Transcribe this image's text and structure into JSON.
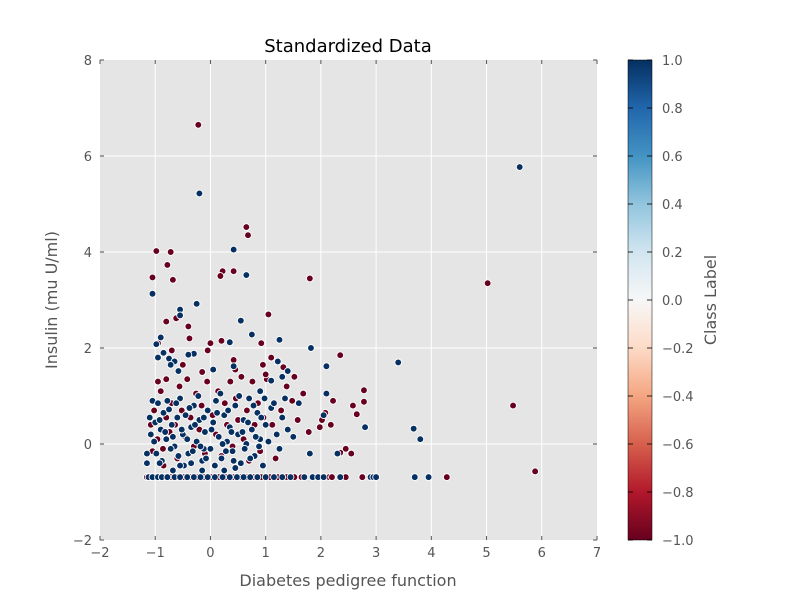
{
  "chart_data": {
    "type": "scatter",
    "title": "Standardized Data",
    "xlabel": "Diabetes pedigree function",
    "ylabel": "Insulin (mu U/ml)",
    "xlim": [
      -2,
      7
    ],
    "ylim": [
      -2,
      8
    ],
    "xticks": [
      "-2",
      "-1",
      "0",
      "1",
      "2",
      "3",
      "4",
      "5",
      "6",
      "7"
    ],
    "yticks": [
      "-2",
      "0",
      "2",
      "4",
      "6",
      "8"
    ],
    "grid": true,
    "colorbar": {
      "label": "Class Label",
      "range": [
        -1,
        1
      ],
      "ticks": [
        "1.0",
        "0.8",
        "0.6",
        "0.4",
        "0.2",
        "0.0",
        "-0.2",
        "-0.4",
        "-0.6",
        "-0.8",
        "-1.0"
      ],
      "colormap": "RdBu"
    },
    "colors": {
      "class_pos": "#053061",
      "class_neg": "#67001f",
      "plot_bg": "#e5e5e5",
      "grid": "#ffffff"
    },
    "series": [
      {
        "class": 1,
        "points": [
          [
            -1.12,
            -0.69
          ],
          [
            -1.05,
            -0.69
          ],
          [
            -0.95,
            -0.69
          ],
          [
            -0.88,
            -0.69
          ],
          [
            -0.78,
            -0.69
          ],
          [
            -0.65,
            -0.69
          ],
          [
            -0.55,
            -0.69
          ],
          [
            -0.42,
            -0.69
          ],
          [
            -0.3,
            -0.69
          ],
          [
            -0.18,
            -0.69
          ],
          [
            -0.05,
            -0.69
          ],
          [
            0.08,
            -0.69
          ],
          [
            0.22,
            -0.69
          ],
          [
            0.35,
            -0.69
          ],
          [
            0.48,
            -0.69
          ],
          [
            0.6,
            -0.69
          ],
          [
            0.72,
            -0.69
          ],
          [
            0.85,
            -0.69
          ],
          [
            1.0,
            -0.69
          ],
          [
            1.15,
            -0.69
          ],
          [
            1.3,
            -0.69
          ],
          [
            1.45,
            -0.69
          ],
          [
            1.7,
            -0.69
          ],
          [
            1.85,
            -0.69
          ],
          [
            1.95,
            -0.69
          ],
          [
            2.05,
            -0.69
          ],
          [
            2.35,
            -0.69
          ],
          [
            2.9,
            -0.69
          ],
          [
            2.95,
            -0.69
          ],
          [
            3.0,
            -0.69
          ],
          [
            3.7,
            -0.69
          ],
          [
            3.95,
            -0.69
          ],
          [
            -0.2,
            5.22
          ],
          [
            -0.12,
            -0.1
          ],
          [
            5.6,
            5.77
          ],
          [
            -1.05,
            3.13
          ],
          [
            0.42,
            4.05
          ],
          [
            0.65,
            3.52
          ],
          [
            -0.55,
            2.8
          ],
          [
            -0.55,
            2.68
          ],
          [
            -0.9,
            2.22
          ],
          [
            -0.25,
            2.92
          ],
          [
            0.55,
            2.57
          ],
          [
            0.75,
            2.28
          ],
          [
            1.25,
            2.17
          ],
          [
            0.35,
            2.12
          ],
          [
            -0.98,
            2.08
          ],
          [
            -0.85,
            1.9
          ],
          [
            -0.3,
            1.88
          ],
          [
            -0.4,
            1.86
          ],
          [
            -0.95,
            1.8
          ],
          [
            -0.75,
            1.78
          ],
          [
            -0.65,
            1.72
          ],
          [
            -0.72,
            1.65
          ],
          [
            0.05,
            1.55
          ],
          [
            -0.58,
            1.52
          ],
          [
            0.42,
            1.62
          ],
          [
            1.22,
            1.72
          ],
          [
            1.82,
            2.0
          ],
          [
            2.1,
            1.62
          ],
          [
            3.4,
            1.7
          ],
          [
            3.68,
            0.32
          ],
          [
            3.8,
            0.1
          ],
          [
            1.4,
            1.52
          ],
          [
            1.3,
            1.4
          ],
          [
            1.1,
            1.32
          ],
          [
            0.9,
            1.1
          ],
          [
            2.1,
            1.05
          ],
          [
            -1.1,
            0.55
          ],
          [
            -1.05,
            0.9
          ],
          [
            -1.0,
            0.45
          ],
          [
            -0.95,
            0.85
          ],
          [
            -0.9,
            0.3
          ],
          [
            -0.85,
            0.65
          ],
          [
            -0.8,
            0.1
          ],
          [
            -0.75,
            0.72
          ],
          [
            -0.7,
            0.4
          ],
          [
            -0.65,
            -0.05
          ],
          [
            -0.6,
            0.55
          ],
          [
            -0.55,
            0.95
          ],
          [
            -0.5,
            0.2
          ],
          [
            -0.45,
            0.6
          ],
          [
            -0.4,
            -0.2
          ],
          [
            -0.35,
            0.35
          ],
          [
            -0.3,
            0.8
          ],
          [
            -0.25,
            0.05
          ],
          [
            -0.2,
            0.5
          ],
          [
            -0.15,
            -0.35
          ],
          [
            -0.1,
            0.25
          ],
          [
            -0.05,
            0.7
          ],
          [
            0.0,
            -0.1
          ],
          [
            0.05,
            0.45
          ],
          [
            0.1,
            0.9
          ],
          [
            0.15,
            0.15
          ],
          [
            0.2,
            -0.3
          ],
          [
            0.25,
            0.6
          ],
          [
            0.3,
            0.05
          ],
          [
            0.35,
            0.35
          ],
          [
            0.4,
            -0.15
          ],
          [
            0.45,
            0.8
          ],
          [
            0.5,
            0.2
          ],
          [
            0.55,
            -0.4
          ],
          [
            0.6,
            0.5
          ],
          [
            0.65,
            0.0
          ],
          [
            0.7,
            0.95
          ],
          [
            0.75,
            0.3
          ],
          [
            0.8,
            -0.25
          ],
          [
            0.85,
            0.65
          ],
          [
            0.9,
            0.1
          ],
          [
            0.95,
            -0.45
          ],
          [
            1.0,
            0.4
          ],
          [
            1.1,
            0.75
          ],
          [
            1.2,
            0.2
          ],
          [
            1.3,
            0.55
          ],
          [
            1.4,
            0.3
          ],
          [
            1.5,
            0.15
          ],
          [
            1.6,
            0.85
          ],
          [
            1.8,
            -0.2
          ],
          [
            2.05,
            0.6
          ],
          [
            2.3,
            -0.2
          ],
          [
            2.8,
            0.35
          ],
          [
            -1.08,
            0.2
          ],
          [
            -1.02,
            0.05
          ],
          [
            -0.98,
            -0.2
          ],
          [
            -0.92,
            0.5
          ],
          [
            -0.88,
            -0.35
          ],
          [
            -0.82,
            0.25
          ],
          [
            -0.78,
            0.9
          ],
          [
            -0.72,
            -0.1
          ],
          [
            -0.68,
            0.15
          ],
          [
            -0.62,
            0.85
          ],
          [
            -0.58,
            -0.25
          ],
          [
            -0.52,
            0.3
          ],
          [
            -0.48,
            -0.45
          ],
          [
            -0.42,
            0.1
          ],
          [
            -0.38,
            0.75
          ],
          [
            -0.32,
            -0.15
          ],
          [
            -0.28,
            0.4
          ],
          [
            -0.22,
            1.0
          ],
          [
            -0.18,
            -0.05
          ],
          [
            -0.12,
            0.55
          ],
          [
            -0.08,
            -0.3
          ],
          [
            0.02,
            0.3
          ],
          [
            0.08,
            -0.45
          ],
          [
            0.12,
            0.65
          ],
          [
            0.18,
            1.05
          ],
          [
            0.22,
            0.0
          ],
          [
            0.28,
            -0.15
          ],
          [
            0.32,
            0.7
          ],
          [
            0.38,
            0.25
          ],
          [
            0.42,
            -0.35
          ],
          [
            0.52,
            1.0
          ],
          [
            0.58,
            0.25
          ],
          [
            0.62,
            -0.1
          ],
          [
            0.68,
            0.45
          ],
          [
            0.72,
            -0.3
          ],
          [
            0.78,
            0.8
          ],
          [
            0.82,
            0.15
          ],
          [
            0.88,
            -0.05
          ],
          [
            0.92,
            0.55
          ],
          [
            0.98,
            0.95
          ],
          [
            1.05,
            0.05
          ],
          [
            1.15,
            0.85
          ],
          [
            1.25,
            -0.1
          ],
          [
            1.35,
            0.95
          ],
          [
            -0.68,
            -0.55
          ],
          [
            -0.55,
            -0.45
          ],
          [
            -0.35,
            -0.4
          ],
          [
            -0.15,
            -0.55
          ],
          [
            0.25,
            -0.55
          ],
          [
            0.45,
            -0.5
          ],
          [
            -0.92,
            -0.4
          ],
          [
            -1.15,
            -0.4
          ],
          [
            -1.15,
            -0.2
          ]
        ]
      },
      {
        "class": -1,
        "points": [
          [
            -1.15,
            -0.69
          ],
          [
            -1.08,
            -0.69
          ],
          [
            -1.0,
            -0.69
          ],
          [
            -0.92,
            -0.69
          ],
          [
            -0.82,
            -0.69
          ],
          [
            -0.72,
            -0.69
          ],
          [
            -0.6,
            -0.69
          ],
          [
            -0.48,
            -0.69
          ],
          [
            -0.36,
            -0.69
          ],
          [
            -0.24,
            -0.69
          ],
          [
            -0.12,
            -0.69
          ],
          [
            0.02,
            -0.69
          ],
          [
            0.15,
            -0.69
          ],
          [
            0.28,
            -0.69
          ],
          [
            0.42,
            -0.69
          ],
          [
            0.55,
            -0.69
          ],
          [
            0.66,
            -0.69
          ],
          [
            0.78,
            -0.69
          ],
          [
            0.92,
            -0.69
          ],
          [
            1.08,
            -0.69
          ],
          [
            1.22,
            -0.69
          ],
          [
            1.38,
            -0.69
          ],
          [
            1.52,
            -0.69
          ],
          [
            1.65,
            -0.69
          ],
          [
            2.15,
            -0.69
          ],
          [
            2.2,
            -0.69
          ],
          [
            2.45,
            -0.69
          ],
          [
            2.75,
            -0.69
          ],
          [
            4.28,
            -0.69
          ],
          [
            -0.22,
            6.65
          ],
          [
            0.65,
            4.52
          ],
          [
            0.68,
            4.35
          ],
          [
            -0.98,
            4.02
          ],
          [
            -0.72,
            4.0
          ],
          [
            -0.78,
            3.73
          ],
          [
            -1.05,
            3.47
          ],
          [
            -0.68,
            3.42
          ],
          [
            0.22,
            3.6
          ],
          [
            0.42,
            3.6
          ],
          [
            0.18,
            3.5
          ],
          [
            1.8,
            3.45
          ],
          [
            5.02,
            3.35
          ],
          [
            1.05,
            2.7
          ],
          [
            -0.62,
            2.62
          ],
          [
            -0.8,
            2.55
          ],
          [
            -0.4,
            2.45
          ],
          [
            -0.38,
            2.2
          ],
          [
            0.0,
            2.1
          ],
          [
            0.2,
            2.15
          ],
          [
            0.42,
            1.75
          ],
          [
            0.92,
            2.1
          ],
          [
            1.1,
            1.8
          ],
          [
            2.35,
            1.85
          ],
          [
            5.48,
            0.8
          ],
          [
            5.88,
            -0.57
          ],
          [
            -0.05,
            1.95
          ],
          [
            -0.95,
            2.1
          ],
          [
            -0.7,
            1.95
          ],
          [
            -1.08,
            0.4
          ],
          [
            -1.02,
            0.7
          ],
          [
            -0.96,
            0.1
          ],
          [
            -0.9,
            1.1
          ],
          [
            -0.86,
            -0.1
          ],
          [
            -0.8,
            0.55
          ],
          [
            -0.74,
            0.25
          ],
          [
            -0.7,
            0.85
          ],
          [
            -0.64,
            0.4
          ],
          [
            -0.6,
            -0.3
          ],
          [
            -0.56,
            1.2
          ],
          [
            -0.52,
            0.7
          ],
          [
            -0.46,
            0.15
          ],
          [
            -0.42,
            1.35
          ],
          [
            -0.36,
            0.55
          ],
          [
            -0.3,
            -0.05
          ],
          [
            -0.26,
            1.05
          ],
          [
            -0.2,
            0.3
          ],
          [
            -0.16,
            0.8
          ],
          [
            -0.1,
            -0.2
          ],
          [
            -0.06,
            1.3
          ],
          [
            0.04,
            0.6
          ],
          [
            0.1,
            0.2
          ],
          [
            0.14,
            1.1
          ],
          [
            0.2,
            -0.25
          ],
          [
            0.26,
            0.85
          ],
          [
            0.3,
            0.4
          ],
          [
            0.36,
            1.3
          ],
          [
            0.4,
            -0.05
          ],
          [
            0.46,
            0.95
          ],
          [
            0.5,
            0.5
          ],
          [
            0.56,
            1.4
          ],
          [
            0.6,
            0.1
          ],
          [
            0.66,
            0.7
          ],
          [
            0.7,
            -0.35
          ],
          [
            0.76,
            1.3
          ],
          [
            0.8,
            0.4
          ],
          [
            0.86,
            0.85
          ],
          [
            0.9,
            -0.15
          ],
          [
            0.96,
            0.55
          ],
          [
            1.02,
            1.35
          ],
          [
            1.12,
            0.4
          ],
          [
            1.18,
            -0.3
          ],
          [
            1.28,
            0.7
          ],
          [
            1.38,
            1.2
          ],
          [
            1.48,
            0.9
          ],
          [
            1.58,
            0.5
          ],
          [
            1.68,
            1.05
          ],
          [
            1.78,
            0.25
          ],
          [
            1.98,
            0.35
          ],
          [
            2.02,
            0.5
          ],
          [
            2.08,
            0.65
          ],
          [
            2.18,
            0.4
          ],
          [
            2.22,
            0.9
          ],
          [
            2.45,
            -0.1
          ],
          [
            2.55,
            -0.2
          ],
          [
            2.58,
            0.8
          ],
          [
            2.65,
            0.62
          ],
          [
            2.78,
            0.88
          ],
          [
            2.78,
            1.12
          ],
          [
            2.35,
            -0.18
          ],
          [
            1.52,
            1.4
          ],
          [
            1.32,
            1.6
          ],
          [
            1.0,
            1.45
          ],
          [
            0.95,
            1.65
          ],
          [
            0.45,
            1.55
          ],
          [
            -0.15,
            1.5
          ],
          [
            -0.5,
            1.65
          ],
          [
            -0.8,
            1.35
          ],
          [
            -0.95,
            1.3
          ],
          [
            -1.05,
            -0.15
          ],
          [
            -0.85,
            -0.45
          ]
        ]
      }
    ]
  }
}
